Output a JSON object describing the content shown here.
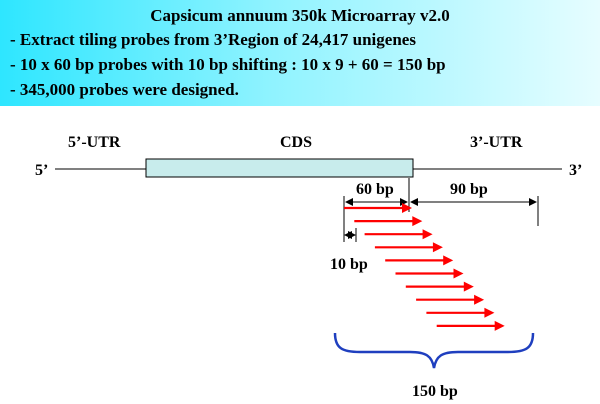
{
  "banner": {
    "title": "Capsicum annuum 350k Microarray v2.0",
    "lines": [
      "- Extract tiling probes from 3’Region of 24,417 unigenes",
      "- 10 x 60 bp probes with 10 bp shifting : 10 x 9 + 60 = 150 bp",
      "- 345,000 probes were designed."
    ]
  },
  "gene": {
    "left_end": "5’",
    "right_end": "3’",
    "utr5_label": "5’-UTR",
    "cds_label": "CDS",
    "utr3_label": "3’-UTR"
  },
  "measures": {
    "probe_length": "60 bp",
    "remaining_length": "90 bp",
    "shift": "10 bp",
    "total_span": "150 bp"
  },
  "probes": {
    "count": 10
  },
  "colors": {
    "banner_start": "#2ee6ff",
    "banner_end": "#e6fdff",
    "cds_fill": "#c8ecec",
    "probe_arrow": "#ff0000",
    "brace": "#1f3fbf",
    "text": "#000000"
  }
}
